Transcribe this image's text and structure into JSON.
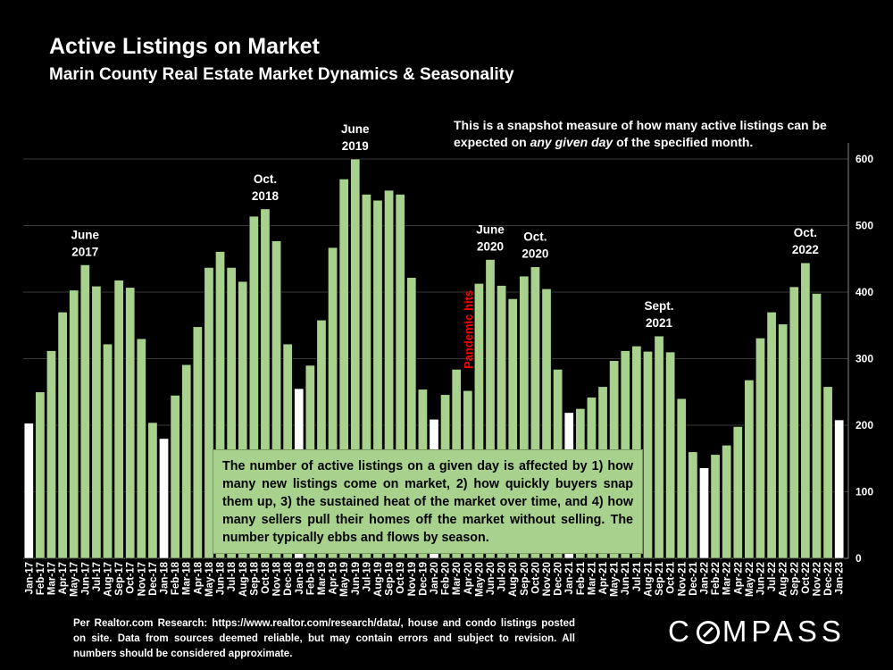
{
  "header": {
    "title": "Active Listings on Market",
    "subtitle": "Marin County Real Estate Market Dynamics & Seasonality"
  },
  "snapshot_note": {
    "before": "This is a snapshot measure of how many active listings can be expected on ",
    "emphasis": "any given day",
    "after": " of the specified month."
  },
  "info_box": {
    "text": "The number of active listings on a given day is affected by 1) how many new listings come on market, 2) how quickly buyers snap them up, 3) the sustained heat of the market over time, and 4) how many sellers pull their homes off the market without selling. The number typically ebbs and flows by season."
  },
  "footer": {
    "source": "Per Realtor.com Research: https://www.realtor.com/research/data/, house and condo listings posted on site. Data from sources deemed reliable, but may contain errors and subject to revision. All numbers should be considered approximate.",
    "logo_left": "C",
    "logo_right": "MPASS"
  },
  "colors": {
    "bar": "#a9d18e",
    "bar_january": "#ffffff",
    "bar_stroke": "#000000",
    "grid": "#3a3a3a",
    "pandemic_label": "#ff0000"
  },
  "chart_data": {
    "type": "bar",
    "title": "Active Listings on Market",
    "subtitle": "Marin County Real Estate Market Dynamics & Seasonality",
    "xlabel": "",
    "ylabel": "",
    "ylim": [
      0,
      600
    ],
    "yticks": [
      0,
      100,
      200,
      300,
      400,
      500,
      600
    ],
    "y_axis_side": "right",
    "grid": true,
    "categories": [
      "Jan-17",
      "Feb-17",
      "Mar-17",
      "Apr-17",
      "May-17",
      "Jun-17",
      "Jul-17",
      "Aug-17",
      "Sep-17",
      "Oct-17",
      "Nov-17",
      "Dec-17",
      "Jan-18",
      "Feb-18",
      "Mar-18",
      "Apr-18",
      "May-18",
      "Jun-18",
      "Jul-18",
      "Aug-18",
      "Sep-18",
      "Oct-18",
      "Nov-18",
      "Dec-18",
      "Jan-19",
      "Feb-19",
      "Mar-19",
      "Apr-19",
      "May-19",
      "Jun-19",
      "Jul-19",
      "Aug-19",
      "Sep-19",
      "Oct-19",
      "Nov-19",
      "Dec-19",
      "Jan-20",
      "Feb-20",
      "Mar-20",
      "Apr-20",
      "May-20",
      "Jun-20",
      "Jul-20",
      "Aug-20",
      "Sep-20",
      "Oct-20",
      "Nov-20",
      "Dec-20",
      "Jan-21",
      "Feb-21",
      "Mar-21",
      "Apr-21",
      "May-21",
      "Jun-21",
      "Jul-21",
      "Aug-21",
      "Sep-21",
      "Oct-21",
      "Nov-21",
      "Dec-21",
      "Jan-22",
      "Feb-22",
      "Mar-22",
      "Apr-22",
      "May-22",
      "Jun-22",
      "Jul-22",
      "Aug-22",
      "Sep-22",
      "Oct-22",
      "Nov-22",
      "Dec-22",
      "Jan-23"
    ],
    "values": [
      203,
      250,
      312,
      370,
      403,
      441,
      409,
      322,
      418,
      407,
      330,
      204,
      180,
      245,
      291,
      348,
      437,
      461,
      437,
      416,
      514,
      525,
      477,
      322,
      255,
      290,
      358,
      467,
      570,
      600,
      547,
      538,
      553,
      547,
      422,
      254,
      209,
      246,
      284,
      252,
      413,
      449,
      410,
      390,
      424,
      438,
      405,
      284,
      219,
      225,
      242,
      258,
      297,
      312,
      319,
      311,
      334,
      310,
      240,
      160,
      136,
      156,
      170,
      198,
      268,
      331,
      370,
      352,
      408,
      444,
      398,
      258,
      208
    ],
    "highlight_color_rule": "January bars are white; all other months are green",
    "annotations": [
      {
        "label_lines": [
          "June",
          "2017"
        ],
        "category": "Jun-17"
      },
      {
        "label_lines": [
          "Oct.",
          "2018"
        ],
        "category": "Oct-18"
      },
      {
        "label_lines": [
          "June",
          "2019"
        ],
        "category": "Jun-19"
      },
      {
        "label_lines": [
          "June",
          "2020"
        ],
        "category": "Jun-20"
      },
      {
        "label_lines": [
          "Oct.",
          "2020"
        ],
        "category": "Oct-20"
      },
      {
        "label_lines": [
          "Sept.",
          "2021"
        ],
        "category": "Sep-21"
      },
      {
        "label_lines": [
          "Oct.",
          "2022"
        ],
        "category": "Oct-22"
      }
    ],
    "pandemic_annotation": {
      "text": "Pandemic hits",
      "category": "Apr-20"
    }
  }
}
